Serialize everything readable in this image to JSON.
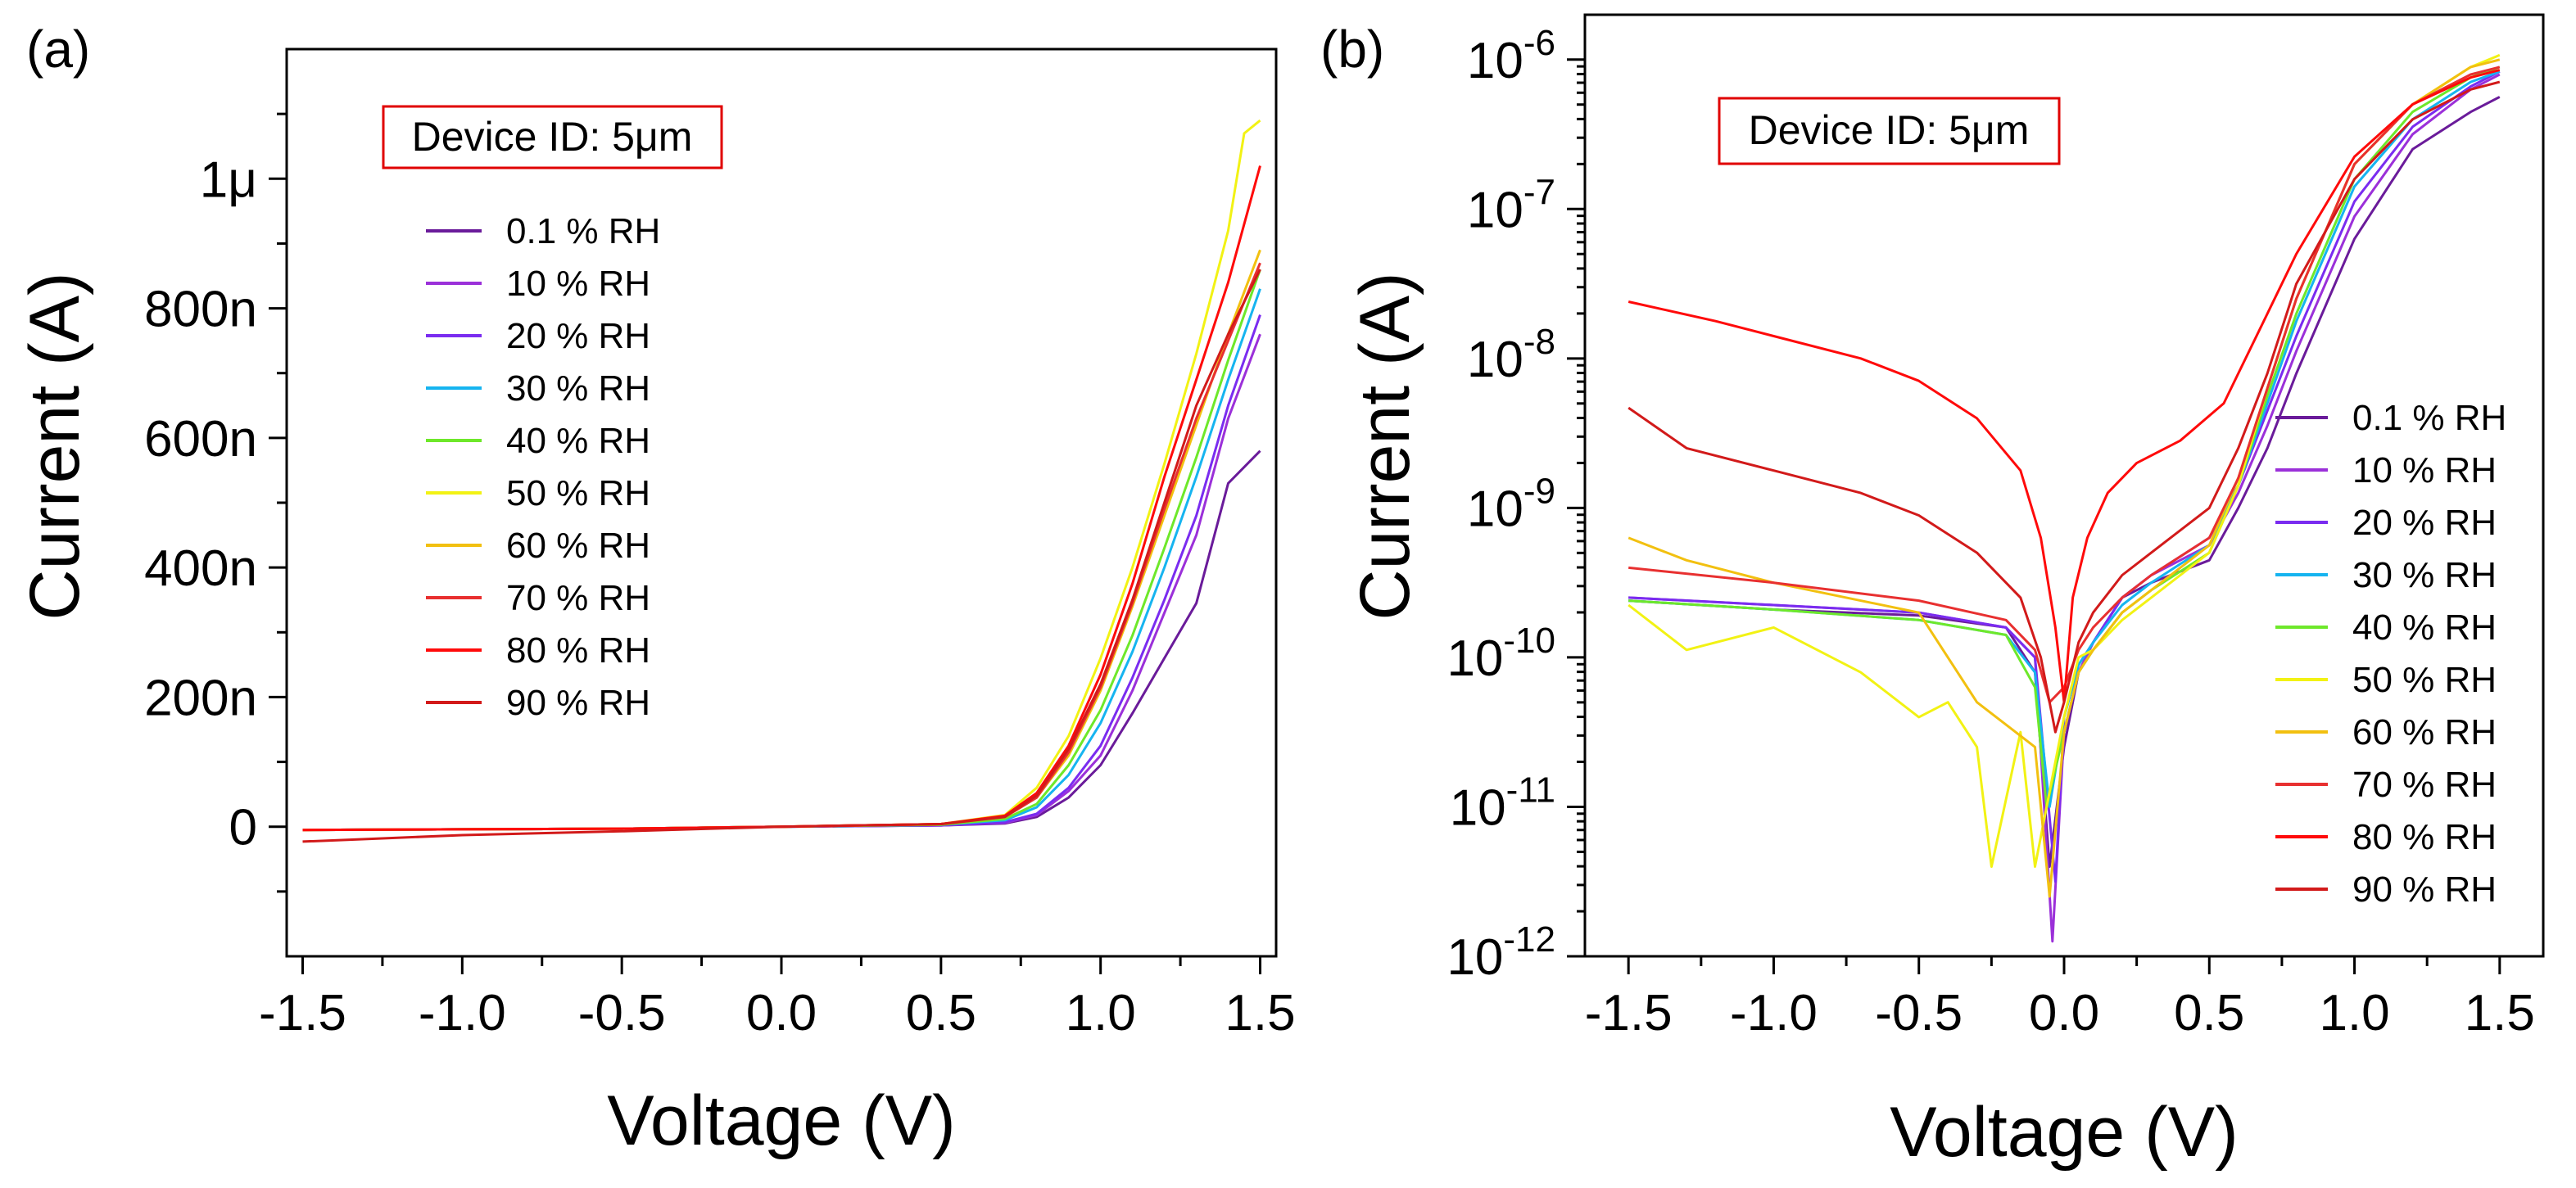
{
  "chart_data": [
    {
      "panel": "(a)",
      "type": "line",
      "title": "",
      "xlabel": "Voltage (V)",
      "ylabel": "Current (A)",
      "xlim": [
        -1.55,
        1.55
      ],
      "ylim": [
        -2e-07,
        1.2e-06
      ],
      "yscale": "linear",
      "x_ticks": [
        -1.5,
        -1.0,
        -0.5,
        0.0,
        0.5,
        1.0,
        1.5
      ],
      "x_tick_labels": [
        "-1.5",
        "-1.0",
        "-0.5",
        "0.0",
        "0.5",
        "1.0",
        "1.5"
      ],
      "y_ticks": [
        0,
        2e-07,
        4e-07,
        6e-07,
        8e-07,
        1e-06
      ],
      "y_tick_labels": [
        "0",
        "200n",
        "400n",
        "600n",
        "800n",
        "1μ"
      ],
      "annotation": "Device ID: 5μm",
      "legend_position": "upper-left",
      "series": [
        {
          "name": "0.1 % RH",
          "color": "#6a1b9a",
          "x": [
            -1.5,
            -1.0,
            -0.5,
            0.0,
            0.5,
            0.7,
            0.8,
            0.9,
            1.0,
            1.1,
            1.2,
            1.3,
            1.4,
            1.5
          ],
          "values": [
            -5e-09,
            -4e-09,
            -3e-09,
            0,
            2e-09,
            5e-09,
            1.5e-08,
            4.5e-08,
            9.5e-08,
            1.75e-07,
            2.6e-07,
            3.45e-07,
            5.3e-07,
            5.8e-07
          ]
        },
        {
          "name": "10 % RH",
          "color": "#9b30d9",
          "x": [
            -1.5,
            -1.0,
            -0.5,
            0.0,
            0.5,
            0.7,
            0.8,
            0.9,
            1.0,
            1.1,
            1.2,
            1.3,
            1.4,
            1.5
          ],
          "values": [
            -5e-09,
            -4e-09,
            -3e-09,
            0,
            2e-09,
            6e-09,
            1.8e-08,
            5.5e-08,
            1.1e-07,
            2.1e-07,
            3.3e-07,
            4.5e-07,
            6.3e-07,
            7.6e-07
          ]
        },
        {
          "name": "20 % RH",
          "color": "#7a2cf0",
          "x": [
            -1.5,
            -1.0,
            -0.5,
            0.0,
            0.5,
            0.7,
            0.8,
            0.9,
            1.0,
            1.1,
            1.2,
            1.3,
            1.4,
            1.5
          ],
          "values": [
            -5e-09,
            -4e-09,
            -3e-09,
            0,
            2e-09,
            7e-09,
            2e-08,
            6e-08,
            1.25e-07,
            2.3e-07,
            3.5e-07,
            4.8e-07,
            6.5e-07,
            7.9e-07
          ]
        },
        {
          "name": "30 % RH",
          "color": "#16b4f0",
          "x": [
            -1.5,
            -1.0,
            -0.5,
            0.0,
            0.5,
            0.7,
            0.8,
            0.9,
            1.0,
            1.1,
            1.2,
            1.3,
            1.4,
            1.5
          ],
          "values": [
            -5e-09,
            -4e-09,
            -3e-09,
            0,
            3e-09,
            1e-08,
            3e-08,
            8e-08,
            1.6e-07,
            2.7e-07,
            4e-07,
            5.4e-07,
            6.9e-07,
            8.3e-07
          ]
        },
        {
          "name": "40 % RH",
          "color": "#6ee82a",
          "x": [
            -1.5,
            -1.0,
            -0.5,
            0.0,
            0.5,
            0.7,
            0.8,
            0.9,
            1.0,
            1.1,
            1.2,
            1.3,
            1.4,
            1.5
          ],
          "values": [
            -5e-09,
            -4e-09,
            -3e-09,
            0,
            3e-09,
            1.2e-08,
            3.5e-08,
            9.5e-08,
            1.8e-07,
            2.95e-07,
            4.3e-07,
            5.7e-07,
            7.2e-07,
            8.6e-07
          ]
        },
        {
          "name": "50 % RH",
          "color": "#f2f214",
          "x": [
            -1.5,
            -1.0,
            -0.5,
            0.0,
            0.5,
            0.7,
            0.8,
            0.9,
            1.0,
            1.1,
            1.2,
            1.3,
            1.4,
            1.45,
            1.5
          ],
          "values": [
            -5e-09,
            -4e-09,
            -3e-09,
            0,
            4e-09,
            1.8e-08,
            6e-08,
            1.4e-07,
            2.6e-07,
            4e-07,
            5.6e-07,
            7.3e-07,
            9.2e-07,
            1.07e-06,
            1.09e-06
          ]
        },
        {
          "name": "60 % RH",
          "color": "#f2c010",
          "x": [
            -1.5,
            -1.0,
            -0.5,
            0.0,
            0.5,
            0.7,
            0.8,
            0.9,
            1.0,
            1.1,
            1.2,
            1.3,
            1.4,
            1.5
          ],
          "values": [
            -5e-09,
            -4e-09,
            -3e-09,
            0,
            4e-09,
            1.5e-08,
            4.5e-08,
            1.1e-07,
            2.1e-07,
            3.4e-07,
            4.8e-07,
            6.2e-07,
            7.6e-07,
            8.9e-07
          ]
        },
        {
          "name": "70 % RH",
          "color": "#e83030",
          "x": [
            -1.5,
            -1.0,
            -0.5,
            0.0,
            0.5,
            0.7,
            0.8,
            0.9,
            1.0,
            1.1,
            1.2,
            1.3,
            1.4,
            1.5
          ],
          "values": [
            -5e-09,
            -4e-09,
            -3e-09,
            0,
            4e-09,
            1.5e-08,
            4.5e-08,
            1.15e-07,
            2.15e-07,
            3.45e-07,
            4.9e-07,
            6.3e-07,
            7.5e-07,
            8.7e-07
          ]
        },
        {
          "name": "80 % RH",
          "color": "#ff0a0a",
          "x": [
            -1.5,
            -1.0,
            -0.5,
            0.0,
            0.5,
            0.7,
            0.8,
            0.9,
            1.0,
            1.1,
            1.2,
            1.3,
            1.4,
            1.5
          ],
          "values": [
            -5e-09,
            -4e-09,
            -3e-09,
            0,
            4e-09,
            1.7e-08,
            5.2e-08,
            1.25e-07,
            2.35e-07,
            3.75e-07,
            5.4e-07,
            6.9e-07,
            8.4e-07,
            1.02e-06
          ]
        },
        {
          "name": "90 % RH",
          "color": "#d21a1a",
          "x": [
            -1.5,
            -1.25,
            -1.0,
            -0.5,
            0.0,
            0.5,
            0.7,
            0.8,
            0.9,
            1.0,
            1.1,
            1.2,
            1.3,
            1.4,
            1.5
          ],
          "values": [
            -2.3e-08,
            -1.8e-08,
            -1.3e-08,
            -7e-09,
            0,
            4e-09,
            1.5e-08,
            4.8e-08,
            1.2e-07,
            2.2e-07,
            3.5e-07,
            5e-07,
            6.5e-07,
            7.6e-07,
            8.6e-07
          ]
        }
      ]
    },
    {
      "panel": "(b)",
      "type": "line",
      "title": "",
      "xlabel": "Voltage (V)",
      "ylabel": "Current (A)",
      "xlim": [
        -1.65,
        1.65
      ],
      "ylim": [
        -12,
        -5.7
      ],
      "yscale": "log10",
      "x_ticks": [
        -1.5,
        -1.0,
        -0.5,
        0.0,
        0.5,
        1.0,
        1.5
      ],
      "x_tick_labels": [
        "-1.5",
        "-1.0",
        "-0.5",
        "0.0",
        "0.5",
        "1.0",
        "1.5"
      ],
      "y_ticks": [
        -12,
        -11,
        -10,
        -9,
        -8,
        -7,
        -6
      ],
      "y_tick_base": "10",
      "y_tick_exponents": [
        "-12",
        "-11",
        "-10",
        "-9",
        "-8",
        "-7",
        "-6"
      ],
      "annotation": "Device ID: 5μm",
      "legend_position": "center-right",
      "series": [
        {
          "name": "0.1 % RH",
          "color": "#6a1b9a",
          "x": [
            -1.5,
            -1.0,
            -0.5,
            -0.2,
            -0.1,
            -0.05,
            0.0,
            0.05,
            0.1,
            0.2,
            0.3,
            0.5,
            0.6,
            0.7,
            0.8,
            1.0,
            1.2,
            1.4,
            1.5
          ],
          "values": [
            -9.62,
            -9.68,
            -9.72,
            -9.8,
            -10.1,
            -11.4,
            -10.6,
            -10.1,
            -9.9,
            -9.6,
            -9.5,
            -9.35,
            -9.0,
            -8.6,
            -8.1,
            -7.2,
            -6.6,
            -6.35,
            -6.25
          ]
        },
        {
          "name": "10 % RH",
          "color": "#9b30d9",
          "x": [
            -1.5,
            -1.0,
            -0.5,
            -0.2,
            -0.1,
            -0.04,
            0.0,
            0.05,
            0.1,
            0.2,
            0.3,
            0.5,
            0.6,
            0.7,
            0.8,
            1.0,
            1.2,
            1.4,
            1.5
          ],
          "values": [
            -9.6,
            -9.65,
            -9.7,
            -9.8,
            -10.0,
            -11.9,
            -10.5,
            -10.1,
            -9.9,
            -9.6,
            -9.45,
            -9.25,
            -8.9,
            -8.45,
            -7.95,
            -7.05,
            -6.5,
            -6.2,
            -6.1
          ]
        },
        {
          "name": "20 % RH",
          "color": "#7a2cf0",
          "x": [
            -1.5,
            -1.0,
            -0.5,
            -0.2,
            -0.1,
            -0.03,
            0.0,
            0.05,
            0.1,
            0.2,
            0.3,
            0.5,
            0.6,
            0.7,
            0.8,
            1.0,
            1.2,
            1.4,
            1.5
          ],
          "values": [
            -9.6,
            -9.65,
            -9.7,
            -9.8,
            -10.0,
            -11.5,
            -10.4,
            -10.05,
            -9.9,
            -9.6,
            -9.45,
            -9.2,
            -8.85,
            -8.35,
            -7.85,
            -6.95,
            -6.45,
            -6.18,
            -6.08
          ]
        },
        {
          "name": "30 % RH",
          "color": "#16b4f0",
          "x": [
            -1.5,
            -1.0,
            -0.5,
            -0.2,
            -0.1,
            -0.05,
            0.0,
            0.05,
            0.1,
            0.2,
            0.3,
            0.5,
            0.6,
            0.7,
            0.8,
            1.0,
            1.2,
            1.4,
            1.5
          ],
          "values": [
            -9.62,
            -9.68,
            -9.75,
            -9.85,
            -10.1,
            -11.0,
            -10.4,
            -10.05,
            -9.9,
            -9.65,
            -9.5,
            -9.25,
            -8.85,
            -8.3,
            -7.75,
            -6.85,
            -6.4,
            -6.15,
            -6.08
          ]
        },
        {
          "name": "40 % RH",
          "color": "#6ee82a",
          "x": [
            -1.5,
            -1.0,
            -0.5,
            -0.2,
            -0.1,
            -0.06,
            0.0,
            0.05,
            0.1,
            0.2,
            0.3,
            0.5,
            0.6,
            0.7,
            0.8,
            1.0,
            1.2,
            1.4,
            1.5
          ],
          "values": [
            -9.62,
            -9.68,
            -9.75,
            -9.85,
            -10.2,
            -11.0,
            -10.5,
            -10.1,
            -9.95,
            -9.7,
            -9.55,
            -9.3,
            -8.85,
            -8.25,
            -7.7,
            -6.8,
            -6.35,
            -6.12,
            -6.05
          ]
        },
        {
          "name": "50 % RH",
          "color": "#f2f214",
          "x": [
            -1.5,
            -1.3,
            -1.0,
            -0.7,
            -0.5,
            -0.4,
            -0.3,
            -0.25,
            -0.15,
            -0.1,
            0.0,
            0.05,
            0.1,
            0.2,
            0.3,
            0.5,
            0.6,
            0.7,
            0.8,
            1.0,
            1.2,
            1.4,
            1.5
          ],
          "values": [
            -9.65,
            -9.95,
            -9.8,
            -10.1,
            -10.4,
            -10.3,
            -10.6,
            -11.4,
            -10.5,
            -11.4,
            -10.4,
            -10.0,
            -9.95,
            -9.75,
            -9.6,
            -9.3,
            -8.85,
            -8.2,
            -7.6,
            -6.7,
            -6.3,
            -6.05,
            -5.97
          ]
        },
        {
          "name": "60 % RH",
          "color": "#f2c010",
          "x": [
            -1.5,
            -1.3,
            -1.0,
            -0.5,
            -0.3,
            -0.1,
            -0.05,
            0.0,
            0.05,
            0.1,
            0.2,
            0.3,
            0.5,
            0.6,
            0.7,
            0.8,
            1.0,
            1.2,
            1.4,
            1.5
          ],
          "values": [
            -9.2,
            -9.35,
            -9.5,
            -9.7,
            -10.3,
            -10.6,
            -11.6,
            -10.5,
            -10.1,
            -9.95,
            -9.7,
            -9.55,
            -9.25,
            -8.8,
            -8.2,
            -7.6,
            -6.7,
            -6.3,
            -6.05,
            -6.0
          ]
        },
        {
          "name": "70 % RH",
          "color": "#e83030",
          "x": [
            -1.5,
            -1.0,
            -0.5,
            -0.2,
            -0.1,
            -0.05,
            0.0,
            0.05,
            0.1,
            0.2,
            0.3,
            0.5,
            0.6,
            0.7,
            0.8,
            1.0,
            1.2,
            1.4,
            1.5
          ],
          "values": [
            -9.4,
            -9.5,
            -9.62,
            -9.75,
            -9.95,
            -10.3,
            -10.2,
            -9.95,
            -9.8,
            -9.6,
            -9.45,
            -9.2,
            -8.8,
            -8.2,
            -7.6,
            -6.7,
            -6.3,
            -6.1,
            -6.05
          ]
        },
        {
          "name": "80 % RH",
          "color": "#ff0a0a",
          "x": [
            -1.5,
            -1.2,
            -1.0,
            -0.7,
            -0.5,
            -0.3,
            -0.15,
            -0.08,
            -0.03,
            0.0,
            0.03,
            0.08,
            0.15,
            0.25,
            0.4,
            0.55,
            0.6,
            0.7,
            0.8,
            1.0,
            1.2,
            1.4,
            1.5
          ],
          "values": [
            -7.62,
            -7.75,
            -7.85,
            -8.0,
            -8.15,
            -8.4,
            -8.75,
            -9.2,
            -9.8,
            -10.3,
            -9.6,
            -9.2,
            -8.9,
            -8.7,
            -8.55,
            -8.3,
            -8.1,
            -7.7,
            -7.3,
            -6.65,
            -6.3,
            -6.12,
            -6.07
          ]
        },
        {
          "name": "90 % RH",
          "color": "#d21a1a",
          "x": [
            -1.5,
            -1.3,
            -1.0,
            -0.7,
            -0.5,
            -0.3,
            -0.15,
            -0.08,
            -0.03,
            0.0,
            0.05,
            0.1,
            0.2,
            0.3,
            0.5,
            0.6,
            0.7,
            0.8,
            1.0,
            1.2,
            1.4,
            1.5
          ],
          "values": [
            -8.33,
            -8.6,
            -8.75,
            -8.9,
            -9.05,
            -9.3,
            -9.6,
            -10.0,
            -10.5,
            -10.3,
            -9.9,
            -9.7,
            -9.45,
            -9.3,
            -9.0,
            -8.6,
            -8.1,
            -7.5,
            -6.8,
            -6.4,
            -6.2,
            -6.15
          ]
        }
      ]
    }
  ]
}
